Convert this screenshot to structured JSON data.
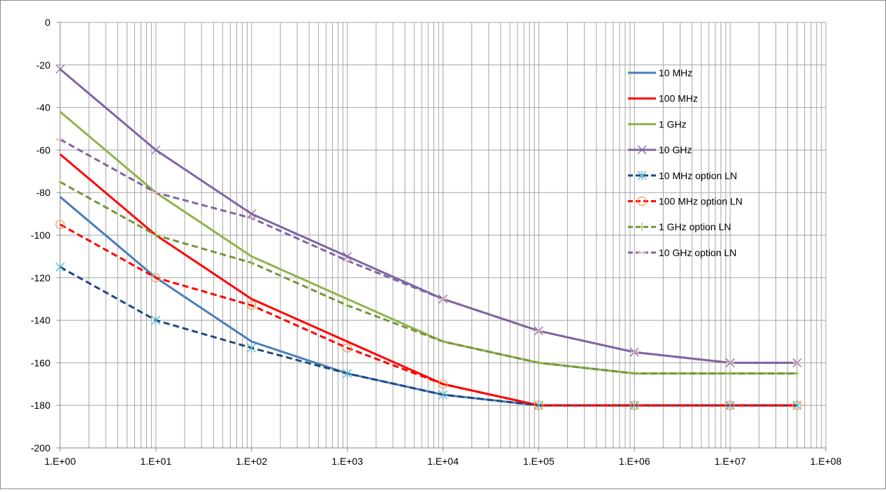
{
  "chart_data": {
    "type": "line",
    "title": "",
    "xlabel": "",
    "ylabel": "",
    "x_scale": "log",
    "xlim": [
      1,
      100000000
    ],
    "ylim": [
      -200,
      0
    ],
    "x_tick_labels": [
      "1.E+00",
      "1.E+01",
      "1.E+02",
      "1.E+03",
      "1.E+04",
      "1.E+05",
      "1.E+06",
      "1.E+07",
      "1.E+08"
    ],
    "y_tick_labels": [
      "0",
      "-20",
      "-40",
      "-60",
      "-80",
      "-100",
      "-120",
      "-140",
      "-160",
      "-180",
      "-200"
    ],
    "grid": "major and minor vertical log gridlines, horizontal gridlines every 20",
    "legend_position": "right",
    "series": [
      {
        "name": "10 MHz",
        "color": "#4a7ebb",
        "dash": "solid",
        "marker": "none",
        "x": [
          1,
          10,
          100,
          1000,
          10000,
          100000,
          1000000,
          10000000,
          50000000
        ],
        "y": [
          -82,
          -120,
          -150,
          -165,
          -175,
          -180,
          -180,
          -180,
          -180
        ]
      },
      {
        "name": "100 MHz",
        "color": "#ff0000",
        "dash": "solid",
        "marker": "none",
        "x": [
          1,
          10,
          100,
          1000,
          10000,
          100000,
          1000000,
          10000000,
          50000000
        ],
        "y": [
          -62,
          -100,
          -130,
          -150,
          -170,
          -180,
          -180,
          -180,
          -180
        ]
      },
      {
        "name": "1 GHz",
        "color": "#8eb44d",
        "dash": "solid",
        "marker": "none",
        "x": [
          1,
          10,
          100,
          1000,
          10000,
          100000,
          1000000,
          10000000,
          50000000
        ],
        "y": [
          -42,
          -80,
          -110,
          -130,
          -150,
          -160,
          -165,
          -165,
          -165
        ]
      },
      {
        "name": "10 GHz",
        "color": "#8064a2",
        "dash": "solid",
        "marker": "x",
        "x": [
          1,
          10,
          100,
          1000,
          10000,
          100000,
          1000000,
          10000000,
          50000000
        ],
        "y": [
          -22,
          -60,
          -90,
          -110,
          -130,
          -145,
          -155,
          -160,
          -160
        ]
      },
      {
        "name": "10 MHz option LN",
        "color": "#1f497d",
        "dash": "dashed",
        "marker": "asterisk",
        "x": [
          1,
          10,
          100,
          1000,
          10000,
          100000,
          1000000,
          10000000,
          50000000
        ],
        "y": [
          -115,
          -140,
          -153,
          -165,
          -175,
          -180,
          -180,
          -180,
          -180
        ]
      },
      {
        "name": "100 MHz option LN",
        "color": "#ff0000",
        "dash": "dashed",
        "marker": "circle",
        "x": [
          1,
          10,
          100,
          1000,
          10000,
          100000,
          1000000,
          10000000,
          50000000
        ],
        "y": [
          -95,
          -120,
          -133,
          -153,
          -170,
          -180,
          -180,
          -180,
          -180
        ]
      },
      {
        "name": "1 GHz option LN",
        "color": "#77933c",
        "dash": "dashed",
        "marker": "plus",
        "x": [
          1,
          10,
          100,
          1000,
          10000,
          100000,
          1000000,
          10000000,
          50000000
        ],
        "y": [
          -75,
          -100,
          -113,
          -133,
          -150,
          -160,
          -165,
          -165,
          -165
        ]
      },
      {
        "name": "10 GHz option LN",
        "color": "#8064a2",
        "dash": "dashed",
        "marker": "dash",
        "x": [
          1,
          10,
          100,
          1000,
          10000,
          100000,
          1000000,
          10000000,
          50000000
        ],
        "y": [
          -55,
          -80,
          -92,
          -112,
          -130,
          -145,
          -155,
          -160,
          -160
        ]
      }
    ]
  }
}
